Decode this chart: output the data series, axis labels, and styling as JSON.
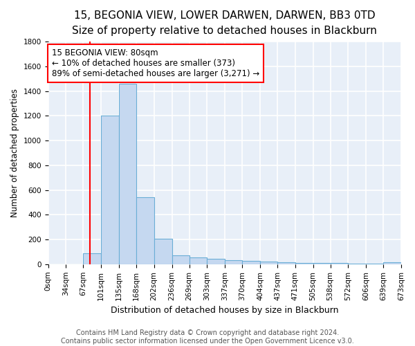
{
  "title": "15, BEGONIA VIEW, LOWER DARWEN, DARWEN, BB3 0TD",
  "subtitle": "Size of property relative to detached houses in Blackburn",
  "xlabel": "Distribution of detached houses by size in Blackburn",
  "ylabel": "Number of detached properties",
  "bar_color": "#c5d8f0",
  "bar_edge_color": "#6aaed6",
  "background_color": "#e8eff8",
  "grid_color": "white",
  "bin_edges": [
    0,
    34,
    67,
    101,
    135,
    168,
    202,
    236,
    269,
    303,
    337,
    370,
    404,
    437,
    471,
    505,
    538,
    572,
    606,
    639,
    673
  ],
  "bar_heights": [
    0,
    0,
    90,
    1200,
    1460,
    540,
    205,
    70,
    55,
    45,
    35,
    25,
    20,
    15,
    12,
    10,
    8,
    5,
    5,
    15
  ],
  "red_line_x": 80,
  "annotation_line1": "15 BEGONIA VIEW: 80sqm",
  "annotation_line2": "← 10% of detached houses are smaller (373)",
  "annotation_line3": "89% of semi-detached houses are larger (3,271) →",
  "ylim": [
    0,
    1800
  ],
  "yticks": [
    0,
    200,
    400,
    600,
    800,
    1000,
    1200,
    1400,
    1600,
    1800
  ],
  "footer_text": "Contains HM Land Registry data © Crown copyright and database right 2024.\nContains public sector information licensed under the Open Government Licence v3.0.",
  "title_fontsize": 11,
  "subtitle_fontsize": 9.5,
  "xlabel_fontsize": 9,
  "ylabel_fontsize": 8.5,
  "tick_fontsize": 7.5,
  "annotation_fontsize": 8.5,
  "footer_fontsize": 7
}
